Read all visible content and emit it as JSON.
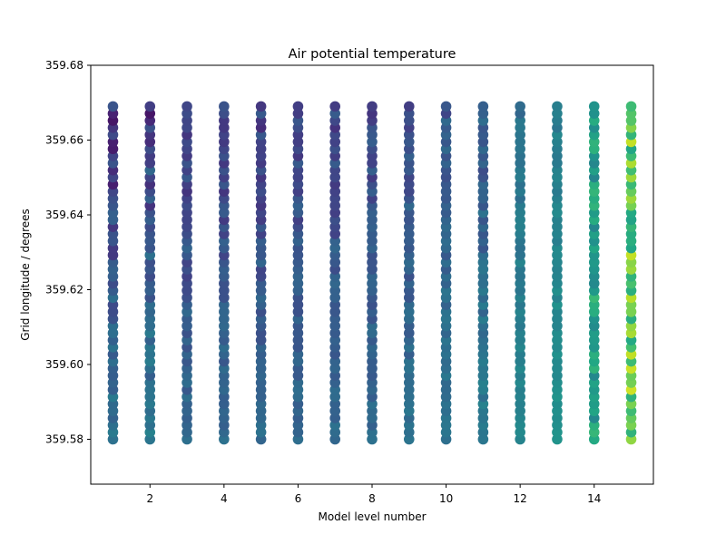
{
  "chart_data": {
    "type": "scatter",
    "title": "Air potential temperature",
    "xlabel": "Model level number",
    "ylabel": "Grid longitude / degrees",
    "xlim": [
      0.4,
      15.6
    ],
    "ylim": [
      359.568,
      359.68
    ],
    "x_ticks": [
      2,
      4,
      6,
      8,
      10,
      12,
      14
    ],
    "x_tick_labels": [
      "2",
      "4",
      "6",
      "8",
      "10",
      "12",
      "14"
    ],
    "y_ticks": [
      359.58,
      359.6,
      359.62,
      359.64,
      359.66,
      359.68
    ],
    "y_tick_labels": [
      "359.58",
      "359.60",
      "359.62",
      "359.64",
      "359.66",
      "359.68"
    ],
    "colormap": "viridis",
    "marker_size": 6,
    "grid": false,
    "x": [
      1,
      2,
      3,
      4,
      5,
      6,
      7,
      8,
      9,
      10,
      11,
      12,
      13,
      14,
      15
    ],
    "y_range": [
      359.58,
      359.669
    ],
    "points_per_level": 48,
    "color_value_ranges": [
      {
        "level": 1,
        "min": 0.0,
        "max": 0.45
      },
      {
        "level": 2,
        "min": 0.05,
        "max": 0.45
      },
      {
        "level": 3,
        "min": 0.08,
        "max": 0.38
      },
      {
        "level": 4,
        "min": 0.1,
        "max": 0.38
      },
      {
        "level": 5,
        "min": 0.1,
        "max": 0.38
      },
      {
        "level": 6,
        "min": 0.1,
        "max": 0.38
      },
      {
        "level": 7,
        "min": 0.12,
        "max": 0.38
      },
      {
        "level": 8,
        "min": 0.12,
        "max": 0.38
      },
      {
        "level": 9,
        "min": 0.15,
        "max": 0.4
      },
      {
        "level": 10,
        "min": 0.2,
        "max": 0.42
      },
      {
        "level": 11,
        "min": 0.18,
        "max": 0.45
      },
      {
        "level": 12,
        "min": 0.32,
        "max": 0.48
      },
      {
        "level": 13,
        "min": 0.38,
        "max": 0.52
      },
      {
        "level": 14,
        "min": 0.45,
        "max": 0.68
      },
      {
        "level": 15,
        "min": 0.58,
        "max": 0.95
      }
    ]
  }
}
